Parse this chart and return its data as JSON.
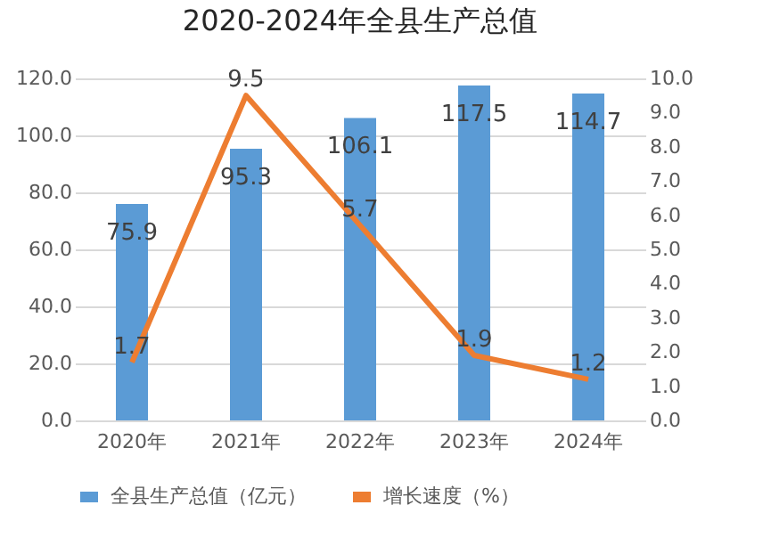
{
  "chart_data": {
    "type": "bar",
    "title": "2020-2024年全县生产总值",
    "categories": [
      "2020年",
      "2021年",
      "2022年",
      "2023年",
      "2024年"
    ],
    "series": [
      {
        "name": "全县生产总值（亿元）",
        "color": "#5b9bd5",
        "values": [
          75.9,
          95.3,
          106.1,
          117.5,
          114.7
        ]
      },
      {
        "name": "增长速度（%）",
        "color": "#ed7d31",
        "type": "line",
        "axis": "y2",
        "values": [
          1.7,
          9.5,
          5.7,
          1.9,
          1.2
        ]
      }
    ],
    "ylim": [
      0,
      120
    ],
    "yticks": [
      {
        "value": 0,
        "label": "0.0"
      },
      {
        "value": 20,
        "label": "20.0"
      },
      {
        "value": 40,
        "label": "40.0"
      },
      {
        "value": 60,
        "label": "60.0"
      },
      {
        "value": 80,
        "label": "80.0"
      },
      {
        "value": 100,
        "label": "100.0"
      },
      {
        "value": 120,
        "label": "120.0"
      }
    ],
    "y2lim": [
      0,
      10
    ],
    "y2ticks": [
      {
        "value": 0,
        "label": "0.0"
      },
      {
        "value": 1,
        "label": "1.0"
      },
      {
        "value": 2,
        "label": "2.0"
      },
      {
        "value": 3,
        "label": "3.0"
      },
      {
        "value": 4,
        "label": "4.0"
      },
      {
        "value": 5,
        "label": "5.0"
      },
      {
        "value": 6,
        "label": "6.0"
      },
      {
        "value": 7,
        "label": "7.0"
      },
      {
        "value": 8,
        "label": "8.0"
      },
      {
        "value": 9,
        "label": "9.0"
      },
      {
        "value": 10,
        "label": "10.0"
      }
    ],
    "grid": "y",
    "legend": "bottom",
    "data_labels": true
  }
}
